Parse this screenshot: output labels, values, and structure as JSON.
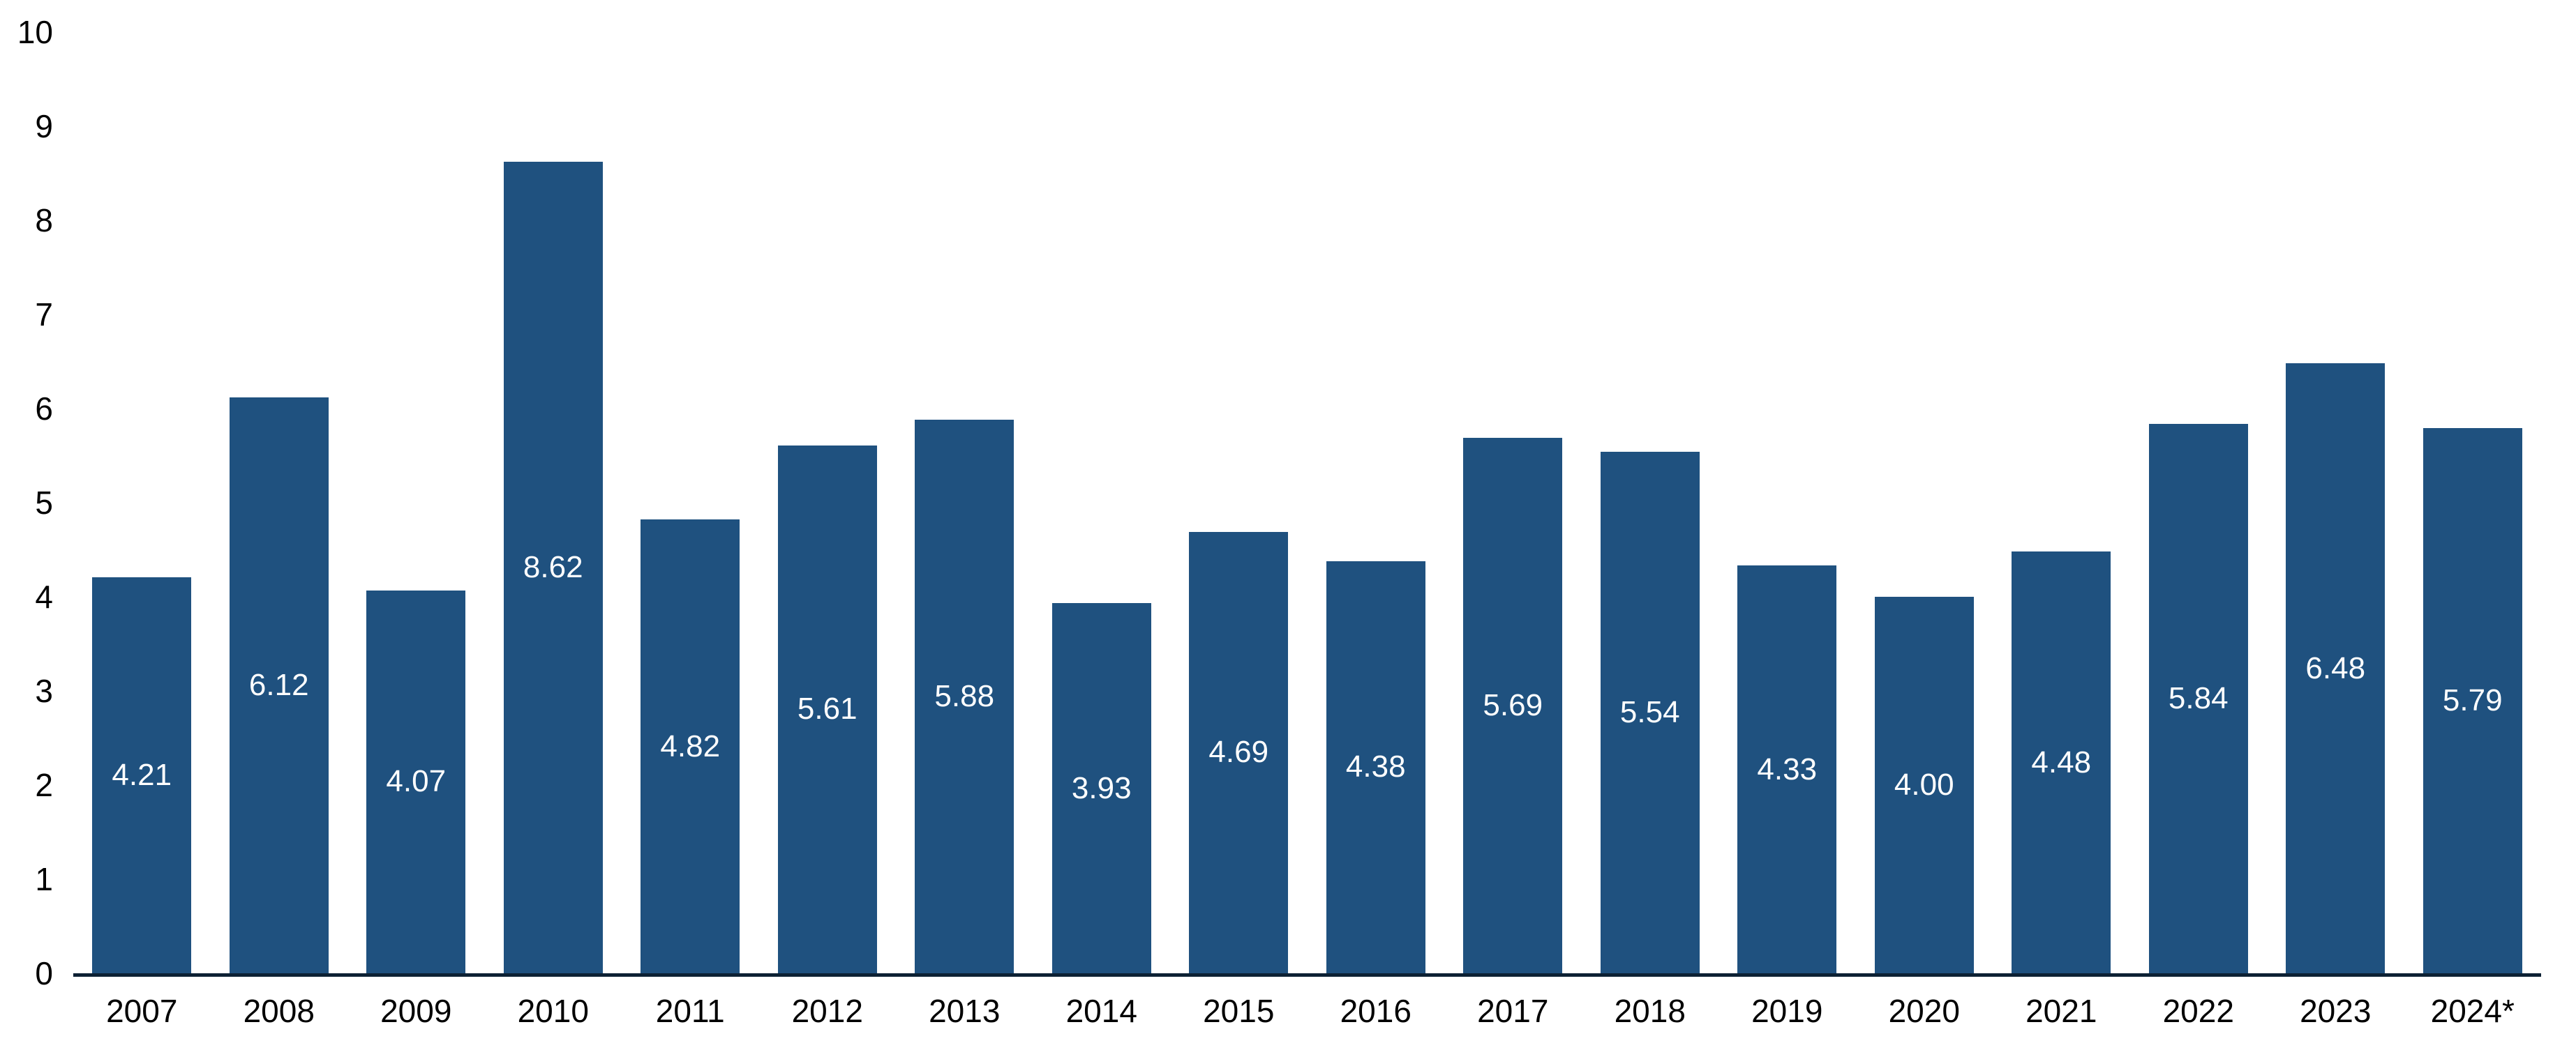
{
  "chart_data": {
    "type": "bar",
    "title": "",
    "xlabel": "",
    "ylabel": "",
    "categories": [
      "2007",
      "2008",
      "2009",
      "2010",
      "2011",
      "2012",
      "2013",
      "2014",
      "2015",
      "2016",
      "2017",
      "2018",
      "2019",
      "2020",
      "2021",
      "2022",
      "2023",
      "2024*"
    ],
    "values": [
      4.21,
      6.12,
      4.07,
      8.62,
      4.82,
      5.61,
      5.88,
      3.93,
      4.69,
      4.38,
      5.69,
      5.54,
      4.33,
      4.0,
      4.48,
      5.84,
      6.48,
      5.79
    ],
    "value_labels": [
      "4.21",
      "6.12",
      "4.07",
      "8.62",
      "4.82",
      "5.61",
      "5.88",
      "3.93",
      "4.69",
      "4.38",
      "5.69",
      "5.54",
      "4.33",
      "4.00",
      "4.48",
      "5.84",
      "6.48",
      "5.79"
    ],
    "value_label_position": "centered-inside-bar",
    "ylim": [
      0,
      10
    ],
    "yticks": [
      "0",
      "1",
      "2",
      "3",
      "4",
      "5",
      "6",
      "7",
      "8",
      "9",
      "10"
    ],
    "grid": "off",
    "legend": "none",
    "colors": {
      "bar": "#1F517F",
      "axis_line": "#0D2134",
      "bar_value_text": "#FFFFFF",
      "tick_text": "#000000",
      "background": "#FFFFFF"
    }
  }
}
